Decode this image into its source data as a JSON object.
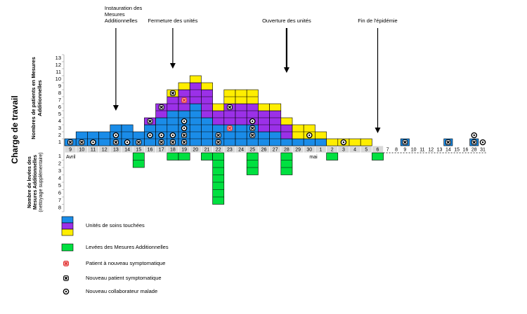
{
  "chart_data": {
    "type": "stacked-blocks",
    "y_title": "Charge de travail",
    "y_label_top": [
      "Nombres de patients en Mesures",
      "Additionnelles"
    ],
    "y_label_bottom": [
      "Nombre de levées des",
      "Mesures Additionnelles",
      "(nettoyage supplémentaire)"
    ],
    "months": [
      {
        "label": "Avril",
        "at": 0
      },
      {
        "label": "mai",
        "at": 22
      }
    ],
    "categories": [
      "9",
      "10",
      "11",
      "12",
      "13",
      "14",
      "15",
      "16",
      "17",
      "18",
      "19",
      "20",
      "21",
      "22",
      "23",
      "24",
      "25",
      "26",
      "27",
      "28",
      "29",
      "30",
      "1",
      "2",
      "3",
      "4",
      "5",
      "6",
      "7",
      "8",
      "9",
      "10",
      "11",
      "12",
      "13",
      "14",
      "15",
      "16",
      "28",
      "31"
    ],
    "series": [
      {
        "color": "#1a8ce8",
        "values": [
          1,
          2,
          2,
          2,
          3,
          3,
          2,
          3,
          4,
          5,
          5,
          6,
          4,
          3,
          3,
          3,
          3,
          2,
          2,
          1,
          1,
          1,
          1,
          0,
          0,
          0,
          0,
          0,
          0,
          0,
          1,
          0,
          0,
          0,
          0,
          1,
          0,
          0,
          1,
          0
        ]
      },
      {
        "color": "#9b30e8",
        "values": [
          0,
          0,
          0,
          0,
          0,
          0,
          0,
          1,
          2,
          2,
          3,
          3,
          4,
          2,
          3,
          3,
          3,
          3,
          3,
          2,
          0,
          0,
          0,
          0,
          0,
          0,
          0,
          0,
          0,
          0,
          0,
          0,
          0,
          0,
          0,
          0,
          0,
          0,
          0,
          0
        ]
      },
      {
        "color": "#ffee00",
        "values": [
          0,
          0,
          0,
          0,
          0,
          0,
          0,
          0,
          0,
          1,
          1,
          1,
          1,
          1,
          2,
          2,
          2,
          1,
          1,
          1,
          2,
          2,
          1,
          1,
          1,
          1,
          1,
          0,
          0,
          0,
          0,
          0,
          0,
          0,
          0,
          0,
          0,
          0,
          0,
          0
        ]
      },
      {
        "color": "#00e040",
        "axis": "y2",
        "values": [
          0,
          0,
          0,
          0,
          0,
          0,
          2,
          0,
          0,
          1,
          1,
          0,
          1,
          7,
          0,
          0,
          3,
          0,
          0,
          3,
          0,
          0,
          0,
          1,
          0,
          0,
          0,
          1,
          0,
          0,
          0,
          0,
          0,
          0,
          0,
          0,
          0,
          0,
          0,
          0
        ]
      }
    ],
    "markers": [
      {
        "at": 0,
        "row": 1,
        "kind": "new"
      },
      {
        "at": 1,
        "row": 1,
        "kind": "new"
      },
      {
        "at": 2,
        "row": 1,
        "kind": "staff"
      },
      {
        "at": 4,
        "row": 2,
        "kind": "staff"
      },
      {
        "at": 4,
        "row": 1,
        "kind": "new"
      },
      {
        "at": 5,
        "row": 1,
        "kind": "staff"
      },
      {
        "at": 6,
        "row": 1,
        "kind": "new"
      },
      {
        "at": 7,
        "row": 4,
        "kind": "new"
      },
      {
        "at": 7,
        "row": 2,
        "kind": "staff"
      },
      {
        "at": 8,
        "row": 6,
        "kind": "new"
      },
      {
        "at": 8,
        "row": 2,
        "kind": "staff"
      },
      {
        "at": 8,
        "row": 1,
        "kind": "new"
      },
      {
        "at": 9,
        "row": 8,
        "kind": "new"
      },
      {
        "at": 9,
        "row": 2,
        "kind": "staff"
      },
      {
        "at": 9,
        "row": 1,
        "kind": "new"
      },
      {
        "at": 10,
        "row": 7,
        "kind": "relapse"
      },
      {
        "at": 10,
        "row": 4,
        "kind": "staff"
      },
      {
        "at": 10,
        "row": 3,
        "kind": "staff"
      },
      {
        "at": 10,
        "row": 2,
        "kind": "new"
      },
      {
        "at": 10,
        "row": 1,
        "kind": "new"
      },
      {
        "at": 13,
        "row": 2,
        "kind": "new"
      },
      {
        "at": 13,
        "row": 1,
        "kind": "new"
      },
      {
        "at": 14,
        "row": 6,
        "kind": "new"
      },
      {
        "at": 14,
        "row": 3,
        "kind": "relapse"
      },
      {
        "at": 16,
        "row": 4,
        "kind": "staff"
      },
      {
        "at": 16,
        "row": 3,
        "kind": "new"
      },
      {
        "at": 16,
        "row": 2,
        "kind": "new"
      },
      {
        "at": 21,
        "row": 2,
        "kind": "staff"
      },
      {
        "at": 24,
        "row": 1,
        "kind": "staff"
      },
      {
        "at": 30,
        "row": 1,
        "kind": "new"
      },
      {
        "at": 35,
        "row": 1,
        "kind": "new"
      },
      {
        "at": 38,
        "row": 2,
        "kind": "staff"
      },
      {
        "at": 38,
        "row": 1,
        "kind": "new"
      },
      {
        "at": 39,
        "row": 1,
        "kind": "staff"
      }
    ],
    "annotations": [
      {
        "text": [
          "Instauration des",
          "Mesures",
          "Additionnelles"
        ],
        "at": 4
      },
      {
        "text": [
          "Fermeture des unités"
        ],
        "at": 9
      },
      {
        "text": [
          "Ouverture des unités"
        ],
        "at": 19
      },
      {
        "text": [
          "Fin de l'épidémie"
        ],
        "at": 27
      }
    ],
    "ylim": [
      0,
      13
    ],
    "yticks": [
      1,
      2,
      3,
      4,
      5,
      6,
      7,
      8,
      9,
      10,
      11,
      12,
      13
    ],
    "y2lim": [
      0,
      8
    ],
    "y2ticks": [
      1,
      2,
      3,
      4,
      5,
      6,
      7,
      8
    ],
    "legend": [
      {
        "label": "Unités de soins touchées",
        "marker": "stack"
      },
      {
        "label": "Levées des Mesures Additionnelles",
        "marker": "lift"
      },
      {
        "label": "Patient à nouveau symptomatique",
        "marker": "relapse"
      },
      {
        "label": "Nouveau patient symptomatique",
        "marker": "new"
      },
      {
        "label": "Nouveau collaborateur malade",
        "marker": "staff"
      }
    ]
  }
}
